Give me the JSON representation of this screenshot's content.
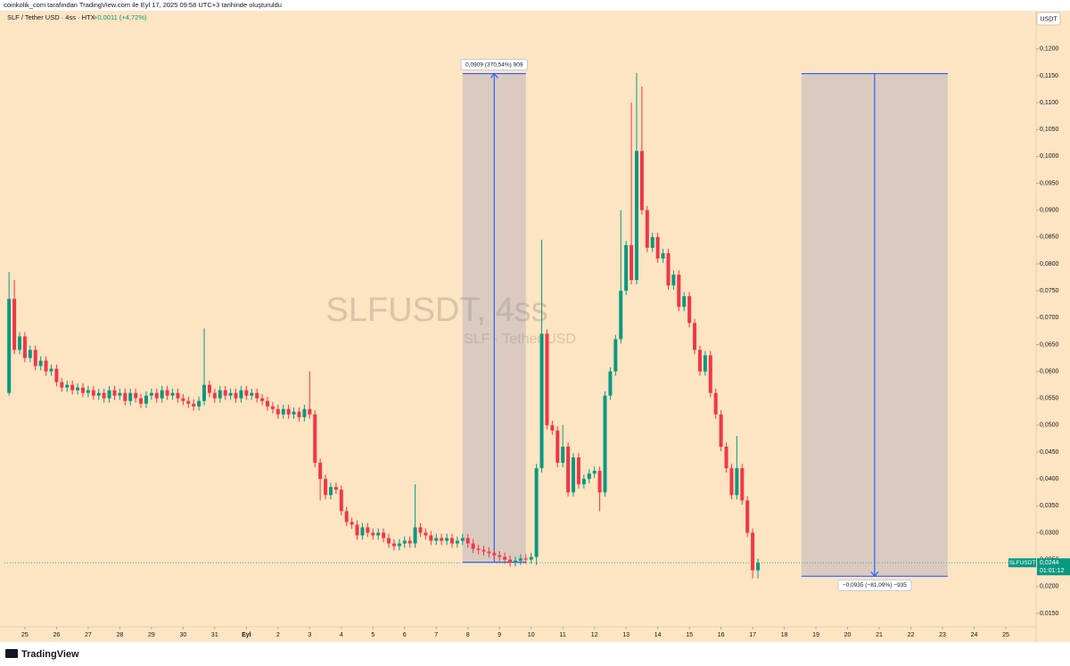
{
  "header_note": "coinkolik_com tarafından TradingView.com ile Eyl 17, 2025 09:58 UTC+3 tarihinde oluşturuldu",
  "footer_brand": "TradingView",
  "chart_data": {
    "type": "candlestick",
    "symbol_title": "SLF / Tether USD · 4ss · HTX",
    "change": "+0,0011 (+4,72%)",
    "currency": "USDT",
    "watermark": "SLFUSDT, 4ss",
    "watermark_sub": "SLF · Tether USD",
    "up_color": "#089981",
    "down_color": "#f23645",
    "grid": false,
    "xlim": [
      -15.5,
      767
    ],
    "ylim": [
      0.0125,
      0.1271
    ],
    "xticks": [
      {
        "value": 0,
        "label": "25"
      },
      {
        "value": 24,
        "label": "26"
      },
      {
        "value": 48,
        "label": "27"
      },
      {
        "value": 72,
        "label": "28"
      },
      {
        "value": 96,
        "label": "29"
      },
      {
        "value": 120,
        "label": "30"
      },
      {
        "value": 144,
        "label": "31"
      },
      {
        "value": 168,
        "label": "Eyl"
      },
      {
        "value": 192,
        "label": "2"
      },
      {
        "value": 216,
        "label": "3"
      },
      {
        "value": 240,
        "label": "4"
      },
      {
        "value": 264,
        "label": "5"
      },
      {
        "value": 288,
        "label": "6"
      },
      {
        "value": 312,
        "label": "7"
      },
      {
        "value": 336,
        "label": "8"
      },
      {
        "value": 360,
        "label": "9"
      },
      {
        "value": 384,
        "label": "10"
      },
      {
        "value": 408,
        "label": "11"
      },
      {
        "value": 432,
        "label": "12"
      },
      {
        "value": 456,
        "label": "13"
      },
      {
        "value": 480,
        "label": "14"
      },
      {
        "value": 504,
        "label": "15"
      },
      {
        "value": 528,
        "label": "16"
      },
      {
        "value": 552,
        "label": "17"
      },
      {
        "value": 576,
        "label": "18"
      },
      {
        "value": 600,
        "label": "19"
      },
      {
        "value": 624,
        "label": "20"
      },
      {
        "value": 648,
        "label": "21"
      },
      {
        "value": 672,
        "label": "22"
      },
      {
        "value": 696,
        "label": "23"
      },
      {
        "value": 720,
        "label": "24"
      },
      {
        "value": 744,
        "label": "25"
      }
    ],
    "yticks": [
      {
        "value": 0.015,
        "label": "0,0150"
      },
      {
        "value": 0.02,
        "label": "0,0200"
      },
      {
        "value": 0.025,
        "label": "0,0250"
      },
      {
        "value": 0.03,
        "label": "0,0300"
      },
      {
        "value": 0.035,
        "label": "0,0350"
      },
      {
        "value": 0.04,
        "label": "0,0400"
      },
      {
        "value": 0.045,
        "label": "0,0450"
      },
      {
        "value": 0.05,
        "label": "0,0500"
      },
      {
        "value": 0.055,
        "label": "0,0550"
      },
      {
        "value": 0.06,
        "label": "0,0600"
      },
      {
        "value": 0.065,
        "label": "0,0650"
      },
      {
        "value": 0.07,
        "label": "0,0700"
      },
      {
        "value": 0.075,
        "label": "0,0750"
      },
      {
        "value": 0.08,
        "label": "0,0800"
      },
      {
        "value": 0.085,
        "label": "0,0850"
      },
      {
        "value": 0.09,
        "label": "0,0900"
      },
      {
        "value": 0.095,
        "label": "0,0950"
      },
      {
        "value": 0.1,
        "label": "0,1000"
      },
      {
        "value": 0.105,
        "label": "0,1050"
      },
      {
        "value": 0.11,
        "label": "0,1100"
      },
      {
        "value": 0.115,
        "label": "0,1150"
      },
      {
        "value": 0.12,
        "label": "0,1200"
      }
    ],
    "x": [
      -12,
      -8,
      -4,
      0,
      4,
      8,
      12,
      16,
      20,
      24,
      28,
      32,
      36,
      40,
      44,
      48,
      52,
      56,
      60,
      64,
      68,
      72,
      76,
      80,
      84,
      88,
      92,
      96,
      100,
      104,
      108,
      112,
      116,
      120,
      124,
      128,
      132,
      136,
      140,
      144,
      148,
      152,
      156,
      160,
      164,
      168,
      172,
      176,
      180,
      184,
      188,
      192,
      196,
      200,
      204,
      208,
      212,
      216,
      220,
      224,
      228,
      232,
      236,
      240,
      244,
      248,
      252,
      256,
      260,
      264,
      268,
      272,
      276,
      280,
      284,
      288,
      292,
      296,
      300,
      304,
      308,
      312,
      316,
      320,
      324,
      328,
      332,
      336,
      340,
      344,
      348,
      352,
      356,
      360,
      364,
      368,
      372,
      376,
      380,
      384,
      388,
      392,
      396,
      400,
      404,
      408,
      412,
      416,
      420,
      424,
      428,
      432,
      436,
      440,
      444,
      448,
      452,
      456,
      460,
      464,
      468,
      472,
      476,
      480,
      484,
      488,
      492,
      496,
      500,
      504,
      508,
      512,
      516,
      520,
      524,
      528,
      532,
      536,
      540,
      544,
      548,
      552,
      556
    ],
    "open": [
      0.056,
      0.0735,
      0.064,
      0.0665,
      0.0625,
      0.064,
      0.061,
      0.062,
      0.06,
      0.0605,
      0.058,
      0.057,
      0.0575,
      0.0565,
      0.057,
      0.056,
      0.0565,
      0.0555,
      0.056,
      0.055,
      0.0565,
      0.0555,
      0.056,
      0.0545,
      0.056,
      0.055,
      0.054,
      0.0555,
      0.056,
      0.055,
      0.0565,
      0.0555,
      0.056,
      0.055,
      0.0545,
      0.054,
      0.0535,
      0.0545,
      0.0575,
      0.056,
      0.055,
      0.0565,
      0.0555,
      0.056,
      0.055,
      0.0565,
      0.0555,
      0.056,
      0.055,
      0.0545,
      0.0535,
      0.053,
      0.052,
      0.053,
      0.052,
      0.0525,
      0.0515,
      0.053,
      0.052,
      0.043,
      0.04,
      0.037,
      0.0385,
      0.038,
      0.034,
      0.032,
      0.0315,
      0.0295,
      0.031,
      0.03,
      0.0295,
      0.03,
      0.029,
      0.028,
      0.0275,
      0.028,
      0.0285,
      0.028,
      0.031,
      0.03,
      0.0295,
      0.0285,
      0.029,
      0.0285,
      0.029,
      0.028,
      0.0285,
      0.029,
      0.028,
      0.027,
      0.0268,
      0.0265,
      0.0262,
      0.0258,
      0.0255,
      0.025,
      0.0245,
      0.0248,
      0.0252,
      0.025,
      0.0255,
      0.042,
      0.067,
      0.05,
      0.049,
      0.043,
      0.046,
      0.0375,
      0.044,
      0.039,
      0.04,
      0.041,
      0.0415,
      0.0375,
      0.0555,
      0.06,
      0.066,
      0.075,
      0.0835,
      0.077,
      0.101,
      0.09,
      0.083,
      0.085,
      0.081,
      0.082,
      0.076,
      0.078,
      0.072,
      0.074,
      0.069,
      0.064,
      0.06,
      0.063,
      0.056,
      0.052,
      0.046,
      0.042,
      0.037,
      0.042,
      0.036,
      0.03,
      0.023
    ],
    "high": [
      0.0785,
      0.077,
      0.0673,
      0.0673,
      0.0648,
      0.0648,
      0.0628,
      0.0628,
      0.0613,
      0.0613,
      0.0588,
      0.0583,
      0.0583,
      0.0578,
      0.0578,
      0.0573,
      0.0573,
      0.0568,
      0.0568,
      0.0573,
      0.0573,
      0.0568,
      0.0568,
      0.0568,
      0.0568,
      0.0558,
      0.0563,
      0.0568,
      0.0568,
      0.0573,
      0.0573,
      0.0568,
      0.0568,
      0.0558,
      0.0553,
      0.0548,
      0.0553,
      0.068,
      0.0583,
      0.0568,
      0.0573,
      0.0573,
      0.0568,
      0.0568,
      0.0573,
      0.0573,
      0.0568,
      0.0568,
      0.0558,
      0.0553,
      0.0543,
      0.0538,
      0.0538,
      0.0538,
      0.0533,
      0.0533,
      0.0538,
      0.06,
      0.0528,
      0.0438,
      0.0408,
      0.0393,
      0.0393,
      0.0388,
      0.0348,
      0.0328,
      0.0323,
      0.0318,
      0.0318,
      0.0308,
      0.0308,
      0.0308,
      0.0298,
      0.0288,
      0.0288,
      0.0293,
      0.0293,
      0.039,
      0.0318,
      0.0308,
      0.0303,
      0.0298,
      0.0298,
      0.0298,
      0.0298,
      0.0293,
      0.0298,
      0.0298,
      0.0288,
      0.0278,
      0.0276,
      0.0273,
      0.027,
      0.0266,
      0.0263,
      0.0258,
      0.0256,
      0.026,
      0.026,
      0.0263,
      0.0428,
      0.0845,
      0.0678,
      0.0508,
      0.0498,
      0.05,
      0.0468,
      0.0448,
      0.0448,
      0.0408,
      0.0418,
      0.0423,
      0.0423,
      0.0563,
      0.0608,
      0.0668,
      0.09,
      0.0843,
      0.11,
      0.1155,
      0.113,
      0.0908,
      0.0858,
      0.0858,
      0.0828,
      0.0828,
      0.0788,
      0.0788,
      0.0748,
      0.0748,
      0.0698,
      0.0648,
      0.0638,
      0.0638,
      0.0568,
      0.0528,
      0.0468,
      0.0428,
      0.048,
      0.0428,
      0.0368,
      0.0308,
      0.0252
    ],
    "low": [
      0.0555,
      0.0632,
      0.0632,
      0.0617,
      0.0617,
      0.0602,
      0.0602,
      0.0592,
      0.0592,
      0.0572,
      0.0562,
      0.0562,
      0.0557,
      0.0557,
      0.0552,
      0.0552,
      0.0547,
      0.0547,
      0.0542,
      0.0542,
      0.0547,
      0.0547,
      0.0537,
      0.0537,
      0.0542,
      0.0532,
      0.0532,
      0.0547,
      0.0542,
      0.0542,
      0.0547,
      0.0547,
      0.0542,
      0.0537,
      0.0532,
      0.0527,
      0.0527,
      0.0537,
      0.0552,
      0.0542,
      0.0542,
      0.0547,
      0.0547,
      0.0542,
      0.0542,
      0.0547,
      0.0547,
      0.0542,
      0.0537,
      0.0527,
      0.0522,
      0.0512,
      0.0512,
      0.0512,
      0.0512,
      0.0507,
      0.0507,
      0.0512,
      0.0422,
      0.036,
      0.0362,
      0.0362,
      0.0372,
      0.0332,
      0.0312,
      0.0307,
      0.0287,
      0.0287,
      0.0292,
      0.0287,
      0.0287,
      0.0282,
      0.0272,
      0.0267,
      0.0267,
      0.0272,
      0.0272,
      0.0272,
      0.0292,
      0.0287,
      0.0277,
      0.0277,
      0.0277,
      0.0277,
      0.0272,
      0.0272,
      0.0277,
      0.0272,
      0.0262,
      0.026,
      0.0257,
      0.0254,
      0.025,
      0.0247,
      0.0242,
      0.0237,
      0.0237,
      0.024,
      0.0242,
      0.0242,
      0.024,
      0.0412,
      0.0492,
      0.0482,
      0.0422,
      0.0422,
      0.0367,
      0.0367,
      0.0382,
      0.0382,
      0.0392,
      0.0402,
      0.034,
      0.0367,
      0.0547,
      0.0592,
      0.0652,
      0.0742,
      0.0762,
      0.0762,
      0.0892,
      0.0822,
      0.0822,
      0.0802,
      0.0802,
      0.0752,
      0.0752,
      0.0712,
      0.0712,
      0.0682,
      0.0632,
      0.0592,
      0.0592,
      0.0552,
      0.0512,
      0.0452,
      0.0412,
      0.0362,
      0.0362,
      0.0352,
      0.0292,
      0.0215,
      0.0215
    ],
    "close": [
      0.0735,
      0.064,
      0.0665,
      0.0625,
      0.064,
      0.061,
      0.062,
      0.06,
      0.0605,
      0.058,
      0.057,
      0.0575,
      0.0565,
      0.057,
      0.056,
      0.0565,
      0.0555,
      0.056,
      0.055,
      0.0565,
      0.0555,
      0.056,
      0.0545,
      0.056,
      0.055,
      0.054,
      0.0555,
      0.056,
      0.055,
      0.0565,
      0.0555,
      0.056,
      0.055,
      0.0545,
      0.054,
      0.0535,
      0.0545,
      0.0575,
      0.056,
      0.055,
      0.0565,
      0.0555,
      0.056,
      0.055,
      0.0565,
      0.0555,
      0.056,
      0.055,
      0.0545,
      0.0535,
      0.053,
      0.052,
      0.053,
      0.052,
      0.0525,
      0.0515,
      0.053,
      0.052,
      0.043,
      0.04,
      0.037,
      0.0385,
      0.038,
      0.034,
      0.032,
      0.0315,
      0.0295,
      0.031,
      0.03,
      0.0295,
      0.03,
      0.029,
      0.028,
      0.0275,
      0.028,
      0.0285,
      0.028,
      0.031,
      0.03,
      0.0295,
      0.0285,
      0.029,
      0.0285,
      0.029,
      0.028,
      0.0285,
      0.029,
      0.028,
      0.027,
      0.0268,
      0.0265,
      0.0262,
      0.0258,
      0.0255,
      0.025,
      0.0245,
      0.0248,
      0.0252,
      0.025,
      0.0255,
      0.042,
      0.067,
      0.05,
      0.049,
      0.043,
      0.046,
      0.0375,
      0.044,
      0.039,
      0.04,
      0.041,
      0.0415,
      0.0375,
      0.0555,
      0.06,
      0.066,
      0.075,
      0.0835,
      0.077,
      0.101,
      0.09,
      0.083,
      0.085,
      0.081,
      0.082,
      0.076,
      0.078,
      0.072,
      0.074,
      0.069,
      0.064,
      0.06,
      0.063,
      0.056,
      0.052,
      0.046,
      0.042,
      0.037,
      0.042,
      0.036,
      0.03,
      0.023,
      0.0244
    ],
    "last_price": {
      "value": 0.0244,
      "label": "0,0244",
      "symbol": "SLFUSDT",
      "countdown": "01:01:12"
    },
    "annotations": [
      {
        "label": "0,0909 (370,54%) 909",
        "x": [
          332,
          380
        ],
        "y": [
          0.0245,
          0.1154
        ]
      },
      {
        "label": "−0,0935 (−81,09%) −935",
        "x": [
          589,
          700
        ],
        "y": [
          0.1154,
          0.0219
        ]
      }
    ]
  }
}
